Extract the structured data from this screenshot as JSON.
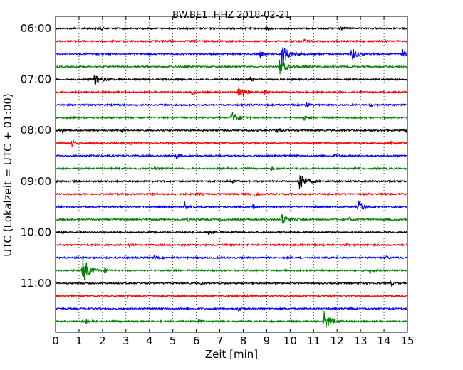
{
  "chart_data": {
    "type": "line",
    "title": "BW.BE1..HHZ 2018-02-21",
    "xlabel": "Zeit  [min]",
    "ylabel": "UTC (Lokalzeit = UTC + 01:00)",
    "xlim": [
      0,
      15
    ],
    "xticks": [
      "0",
      "1",
      "2",
      "3",
      "4",
      "5",
      "6",
      "7",
      "8",
      "9",
      "10",
      "11",
      "12",
      "13",
      "14",
      "15"
    ],
    "yticks": [
      "06:00",
      "07:00",
      "08:00",
      "09:00",
      "10:00",
      "11:00"
    ],
    "grid": true,
    "colors": [
      "#000000",
      "#ff0000",
      "#0000ff",
      "#008000"
    ],
    "traces": [
      {
        "start": "06:00",
        "events": [
          {
            "t": 12.1,
            "a": 6
          },
          {
            "t": 1.9,
            "a": 3
          },
          {
            "t": 9.0,
            "a": 3
          }
        ]
      },
      {
        "start": "06:15",
        "events": [
          {
            "t": 4.6,
            "a": 2
          },
          {
            "t": 10.6,
            "a": 2
          }
        ]
      },
      {
        "start": "06:30",
        "events": [
          {
            "t": 8.7,
            "a": 7
          },
          {
            "t": 9.65,
            "a": 18
          },
          {
            "t": 12.6,
            "a": 10
          },
          {
            "t": 14.8,
            "a": 6
          }
        ]
      },
      {
        "start": "06:45",
        "events": [
          {
            "t": 9.55,
            "a": 12
          },
          {
            "t": 10.6,
            "a": 3
          }
        ]
      },
      {
        "start": "07:00",
        "events": [
          {
            "t": 1.65,
            "a": 9
          },
          {
            "t": 8.3,
            "a": 3
          }
        ]
      },
      {
        "start": "07:15",
        "events": [
          {
            "t": 7.8,
            "a": 11
          },
          {
            "t": 5.8,
            "a": 4
          },
          {
            "t": 8.9,
            "a": 3
          }
        ]
      },
      {
        "start": "07:30",
        "events": [
          {
            "t": 10.7,
            "a": 5
          },
          {
            "t": 13.4,
            "a": 2
          }
        ]
      },
      {
        "start": "07:45",
        "events": [
          {
            "t": 7.5,
            "a": 9
          },
          {
            "t": 10.6,
            "a": 3
          }
        ]
      },
      {
        "start": "08:00",
        "events": [
          {
            "t": 0.3,
            "a": 3
          },
          {
            "t": 2.8,
            "a": 4
          },
          {
            "t": 9.45,
            "a": 8
          },
          {
            "t": 14.9,
            "a": 2
          }
        ]
      },
      {
        "start": "08:15",
        "events": [
          {
            "t": 0.7,
            "a": 7
          },
          {
            "t": 3.2,
            "a": 3
          },
          {
            "t": 14.3,
            "a": 3
          }
        ]
      },
      {
        "start": "08:30",
        "events": [
          {
            "t": 5.15,
            "a": 4
          },
          {
            "t": 11.9,
            "a": 3
          }
        ]
      },
      {
        "start": "08:45",
        "events": [
          {
            "t": 9.2,
            "a": 3
          },
          {
            "t": 4.2,
            "a": 2
          }
        ]
      },
      {
        "start": "09:00",
        "events": [
          {
            "t": 10.4,
            "a": 15
          },
          {
            "t": 7.5,
            "a": 3
          },
          {
            "t": 14.2,
            "a": 3
          }
        ]
      },
      {
        "start": "09:15",
        "events": [
          {
            "t": 8.5,
            "a": 4
          },
          {
            "t": 6.0,
            "a": 2
          }
        ]
      },
      {
        "start": "09:30",
        "events": [
          {
            "t": 5.5,
            "a": 7
          },
          {
            "t": 12.9,
            "a": 9
          },
          {
            "t": 8.4,
            "a": 4
          }
        ]
      },
      {
        "start": "09:45",
        "events": [
          {
            "t": 9.65,
            "a": 9
          },
          {
            "t": 5.6,
            "a": 3
          },
          {
            "t": 12.5,
            "a": 3
          }
        ]
      },
      {
        "start": "10:00",
        "events": [
          {
            "t": 0.3,
            "a": 3
          },
          {
            "t": 6.5,
            "a": 3
          }
        ]
      },
      {
        "start": "10:15",
        "events": [
          {
            "t": 3.1,
            "a": 2
          },
          {
            "t": 12.4,
            "a": 2
          }
        ]
      },
      {
        "start": "10:30",
        "events": [
          {
            "t": 4.2,
            "a": 2
          },
          {
            "t": 14.1,
            "a": 3
          }
        ]
      },
      {
        "start": "10:45",
        "events": [
          {
            "t": 1.15,
            "a": 22
          },
          {
            "t": 2.1,
            "a": 4
          },
          {
            "t": 13.4,
            "a": 4
          }
        ]
      },
      {
        "start": "11:00",
        "events": [
          {
            "t": 6.2,
            "a": 3
          },
          {
            "t": 14.3,
            "a": 4
          }
        ]
      },
      {
        "start": "11:15",
        "events": [
          {
            "t": 3.05,
            "a": 3
          },
          {
            "t": 8.0,
            "a": 2
          }
        ]
      },
      {
        "start": "11:30",
        "events": [
          {
            "t": 7.8,
            "a": 4
          },
          {
            "t": 12.6,
            "a": 3
          }
        ]
      },
      {
        "start": "11:45",
        "events": [
          {
            "t": 11.45,
            "a": 14
          },
          {
            "t": 6.1,
            "a": 3
          },
          {
            "t": 1.3,
            "a": 3
          }
        ]
      }
    ]
  }
}
